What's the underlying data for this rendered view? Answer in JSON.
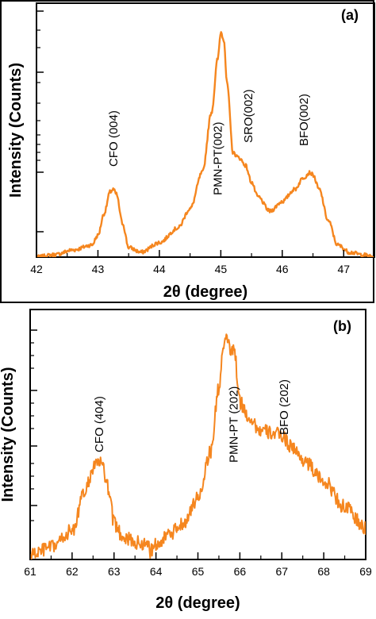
{
  "chart_data": [
    {
      "type": "line",
      "panel_label": "(a)",
      "xlabel": "2θ (degree)",
      "ylabel": "Intensity (Counts)",
      "xlim": [
        42,
        47.5
      ],
      "ylim": [
        0,
        1.05
      ],
      "y_scale": "log",
      "x_ticks": [
        "42",
        "43",
        "44",
        "45",
        "46",
        "47"
      ],
      "line_color": "#f5861f",
      "series": [
        {
          "x": [
            42.0,
            42.3,
            42.6,
            42.9,
            43.0,
            43.1,
            43.2,
            43.25,
            43.3,
            43.4,
            43.5,
            43.7,
            44.0,
            44.3,
            44.5,
            44.7,
            44.85,
            44.95,
            45.0,
            45.05,
            45.1,
            45.2,
            45.3,
            45.4,
            45.5,
            45.6,
            45.8,
            46.0,
            46.2,
            46.35,
            46.45,
            46.5,
            46.6,
            46.75,
            46.9,
            47.1,
            47.3,
            47.5
          ],
          "y": [
            0.0,
            0.01,
            0.03,
            0.05,
            0.09,
            0.18,
            0.27,
            0.28,
            0.26,
            0.14,
            0.04,
            0.02,
            0.06,
            0.12,
            0.2,
            0.35,
            0.6,
            0.82,
            0.93,
            0.9,
            0.72,
            0.43,
            0.41,
            0.38,
            0.31,
            0.25,
            0.19,
            0.23,
            0.28,
            0.33,
            0.35,
            0.34,
            0.28,
            0.15,
            0.05,
            0.02,
            0.01,
            0.0
          ]
        }
      ],
      "annotations": [
        {
          "text": "CFO (004)",
          "x": 43.25
        },
        {
          "text": "PMN-PT(002)",
          "x": 44.95
        },
        {
          "text": "SRO(002)",
          "x": 45.45
        },
        {
          "text": "BFO(002)",
          "x": 46.35
        }
      ]
    },
    {
      "type": "line",
      "panel_label": "(b)",
      "xlabel": "2θ (degree)",
      "ylabel": "Intensity (Counts)",
      "xlim": [
        61,
        69
      ],
      "ylim": [
        0,
        1.05
      ],
      "y_scale": "log",
      "x_ticks": [
        "61",
        "62",
        "63",
        "64",
        "65",
        "66",
        "67",
        "68",
        "69"
      ],
      "line_color": "#f5861f",
      "series": [
        {
          "x": [
            61.0,
            61.5,
            62.0,
            62.3,
            62.5,
            62.6,
            62.7,
            62.8,
            62.9,
            63.0,
            63.2,
            63.5,
            63.9,
            64.3,
            64.7,
            65.0,
            65.3,
            65.5,
            65.6,
            65.7,
            65.75,
            65.8,
            65.85,
            65.9,
            65.95,
            66.0,
            66.2,
            66.5,
            66.8,
            67.0,
            67.2,
            67.5,
            68.0,
            68.5,
            69.0
          ],
          "y": [
            0.02,
            0.05,
            0.12,
            0.28,
            0.38,
            0.41,
            0.4,
            0.35,
            0.25,
            0.15,
            0.1,
            0.07,
            0.06,
            0.1,
            0.16,
            0.26,
            0.45,
            0.72,
            0.88,
            0.93,
            0.9,
            0.86,
            0.89,
            0.84,
            0.72,
            0.66,
            0.6,
            0.54,
            0.53,
            0.52,
            0.48,
            0.42,
            0.33,
            0.22,
            0.13
          ]
        }
      ],
      "annotations": [
        {
          "text": "CFO (404)",
          "x": 62.65
        },
        {
          "text": "PMN-PT (202)",
          "x": 65.85
        },
        {
          "text": "BFO (202)",
          "x": 67.05
        }
      ]
    }
  ]
}
